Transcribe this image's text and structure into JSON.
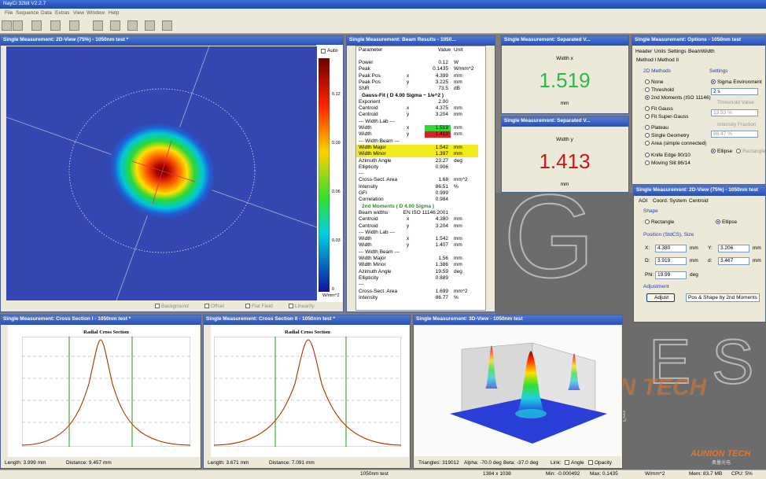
{
  "app": {
    "title": "NayCi 32bit V2.2.7",
    "menu": [
      "File",
      "Sequence",
      "Data",
      "Extras",
      "View",
      "Window",
      "Help"
    ]
  },
  "view2d": {
    "title": "Single Measurement: 2D-View (75%) - 1050nm test *",
    "auto": "Auto",
    "scale": [
      "0.12",
      "0.09",
      "0.06",
      "0.03",
      "0"
    ],
    "unit": "W/mm^2",
    "options": [
      "Background",
      "Offset",
      "Flat Field",
      "Linearity"
    ]
  },
  "results": {
    "title": "Single Measurement: Beam Results - 1050...",
    "columns": [
      "Parameter",
      "Value",
      "Unit"
    ],
    "rows": [
      {
        "p": "Power",
        "v": "0.12",
        "u": "W"
      },
      {
        "p": "Peak",
        "v": "0.1435",
        "u": "W/mm^2"
      },
      {
        "p": "Peak Pos",
        "a": "x",
        "v": "4.399",
        "u": "mm"
      },
      {
        "p": "Peak Pos",
        "a": "y",
        "v": "3.225",
        "u": "mm"
      },
      {
        "p": "SNR",
        "v": "73.5",
        "u": "dB"
      },
      {
        "head": "Gauss-Fit ( D 4.00 Sigma ~ 1/e^2 )",
        "color": "#000000"
      },
      {
        "p": "Exponent",
        "v": "2.00"
      },
      {
        "p": "Centroid",
        "a": "x",
        "v": "4.375",
        "u": "mm"
      },
      {
        "p": "Centroid",
        "a": "y",
        "v": "3.204",
        "u": "mm"
      },
      {
        "p": "--- Width Lab ---"
      },
      {
        "p": "Width",
        "a": "x",
        "v": "1.519",
        "u": "mm",
        "cell": "#39d33b"
      },
      {
        "p": "Width",
        "a": "y",
        "v": "1.413",
        "u": "mm",
        "cell": "#e02020"
      },
      {
        "p": "--- Width Beam ---"
      },
      {
        "p": "Width Major",
        "v": "1.542",
        "u": "mm",
        "row": "#f2ea1a"
      },
      {
        "p": "Width Minor",
        "v": "1.397",
        "u": "mm",
        "row": "#f2ea1a"
      },
      {
        "p": "Azimuth Angle",
        "v": "23.27",
        "u": "deg"
      },
      {
        "p": "Ellipticity",
        "v": "0.906"
      },
      {
        "p": "---"
      },
      {
        "p": "Cross-Sect. Area",
        "v": "1.68",
        "u": "mm^2"
      },
      {
        "p": "Intensity",
        "v": "86.51",
        "u": "%"
      },
      {
        "p": "GFI",
        "v": "0.999"
      },
      {
        "p": "Correlation",
        "v": "0.984"
      },
      {
        "head": "2nd Moments ( D 4.00 Sigma )",
        "color": "#2e8b2e"
      },
      {
        "p": "Beam widths",
        "v": "EN ISO 11146:2001"
      },
      {
        "p": "Centroid",
        "a": "x",
        "v": "4.380",
        "u": "mm"
      },
      {
        "p": "Centroid",
        "a": "y",
        "v": "3.204",
        "u": "mm"
      },
      {
        "p": "--- Width Lab ---"
      },
      {
        "p": "Width",
        "a": "x",
        "v": "1.542",
        "u": "mm"
      },
      {
        "p": "Width",
        "a": "y",
        "v": "1.407",
        "u": "mm"
      },
      {
        "p": "--- Width Beam ---"
      },
      {
        "p": "Width Major",
        "v": "1.56",
        "u": "mm"
      },
      {
        "p": "Width Minor",
        "v": "1.386",
        "u": "mm"
      },
      {
        "p": "Azimuth Angle",
        "v": "19.59",
        "u": "deg"
      },
      {
        "p": "Ellipticity",
        "v": "0.889"
      },
      {
        "p": "---"
      },
      {
        "p": "Cross-Sect. Area",
        "v": "1.699",
        "u": "mm^2"
      },
      {
        "p": "Intensity",
        "v": "86.77",
        "u": "%"
      }
    ]
  },
  "width_x": {
    "title": "Single Measurement: Separated V...",
    "label": "Width x",
    "value": "1.519",
    "unit": "mm",
    "color": "#2db84a"
  },
  "width_y": {
    "title": "Single Measurement: Separated V...",
    "label": "Width y",
    "value": "1.413",
    "unit": "mm",
    "color": "#c41a1a"
  },
  "options": {
    "title": "Single Measurement: Options - 1050nm test",
    "tabs": [
      "Header",
      "Units",
      "Settings",
      "BeamWidth"
    ],
    "subtabs": [
      "Method I",
      "Method II"
    ],
    "methods_title": "2D Methods",
    "methods": [
      "None",
      "Threshold",
      "2nd Moments (ISO 11146)",
      "Fit Gauss",
      "Fit Super-Gauss",
      "Plateau",
      "Single Geometry",
      "Area (simple connected)",
      "Knife Edge 90/10",
      "Moving Slit 86/14"
    ],
    "method_selected": 2,
    "settings_title": "Settings",
    "sigma": "Sigma Environment",
    "sigma_value": "2 s",
    "threshold": "Threshold Value",
    "threshold_value": "13.53 %",
    "fraction": "Intensity Fraction",
    "fraction_value": "86.47 %",
    "ellipse": "Ellipse",
    "rectangle": "Rectangle"
  },
  "aoi": {
    "title": "Single Measurement: 2D-View (75%) - 1050nm test",
    "tabs": [
      "AOI",
      "Coord. System",
      "Centroid"
    ],
    "shape": "Shape",
    "rectangle": "Rectangle",
    "ellipse": "Ellipse",
    "position": "Position (StdCS), Size",
    "fields": [
      {
        "label": "X:",
        "value": "4.380",
        "unit": "mm"
      },
      {
        "label": "Y:",
        "value": "3.206",
        "unit": "mm"
      },
      {
        "label": "D:",
        "value": "3.919",
        "unit": "mm"
      },
      {
        "label": "d:",
        "value": "3.467",
        "unit": "mm"
      },
      {
        "label": "Phi:",
        "value": "19.99",
        "unit": "deg"
      }
    ],
    "adjustment": "Adjustment",
    "adjust": "Adjust",
    "adjust_mode": "Pos & Shape by 2nd Moments"
  },
  "cross1": {
    "title": "Single Measurement: Cross Section I - 1050nm test *",
    "chart": "Radial Cross Section",
    "length": "Length: 3.999 mm",
    "distance": "Distance: 9.457 mm"
  },
  "cross2": {
    "title": "Single Measurement: Cross Section II - 1050nm test *",
    "chart": "Radial Cross Section",
    "length": "Length: 3.671 mm",
    "distance": "Distance: 7.091 mm"
  },
  "view3d": {
    "title": "Single Measurement: 3D-View - 1050nm test",
    "triangles": "Triangles: 319012",
    "alpha": "Alpha: -70.0 deg",
    "beta": "Beta: -37.0 deg",
    "link": "Link:",
    "angle": "Angle",
    "opacity": "Opacity"
  },
  "status": [
    "1050nm test",
    "1384 x 1038",
    "Min: -0.000492",
    "Max: 0.1435",
    "W/mm^2",
    "Mem: 83.7 MB",
    "CPU: 5%"
  ],
  "watermark": {
    "brand": "AUNION TECH",
    "cn": "奥量光电",
    "letters": [
      "G",
      "E",
      "S"
    ]
  }
}
